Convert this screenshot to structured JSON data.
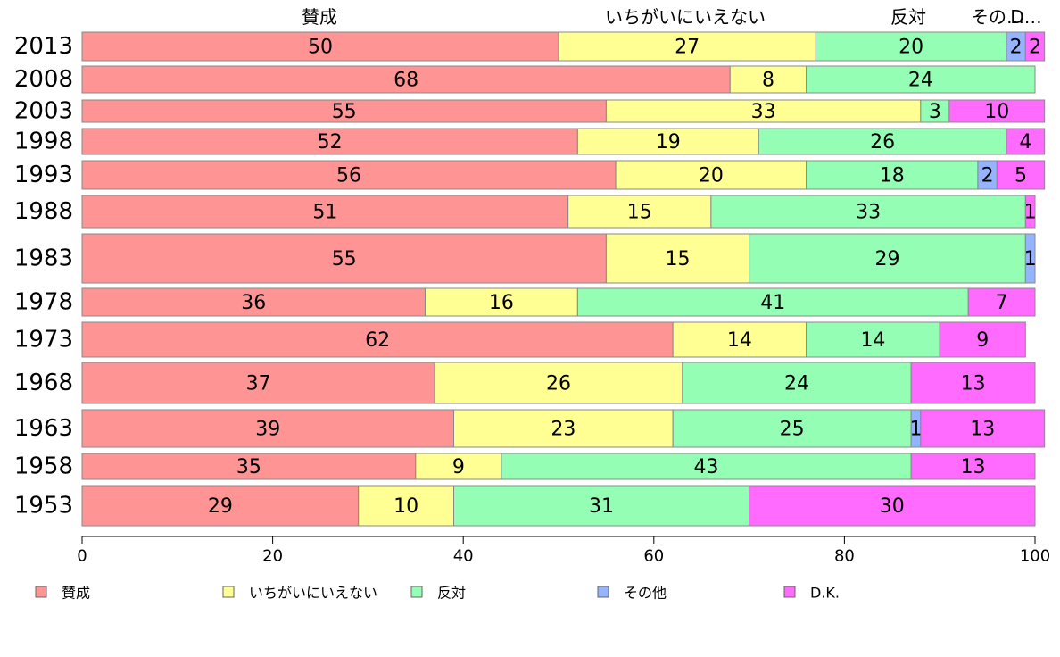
{
  "chart_data": {
    "type": "bar",
    "orientation": "horizontal",
    "stacked": true,
    "title": "",
    "xlabel": "",
    "ylabel": "",
    "xlim": [
      0,
      100
    ],
    "x_ticks": [
      "0",
      "20",
      "40",
      "60",
      "80",
      "100"
    ],
    "legend_position": "bottom",
    "grid": false,
    "categories": [
      "2013",
      "2008",
      "2003",
      "1998",
      "1993",
      "1988",
      "1983",
      "1978",
      "1973",
      "1968",
      "1963",
      "1958",
      "1953"
    ],
    "series": [
      {
        "name": "賛成",
        "color": "#ff9494",
        "values": [
          50,
          68,
          55,
          52,
          56,
          51,
          55,
          36,
          62,
          37,
          39,
          35,
          29
        ]
      },
      {
        "name": "いちがいにいえない",
        "color": "#ffff94",
        "values": [
          27,
          8,
          33,
          19,
          20,
          15,
          15,
          16,
          14,
          26,
          23,
          9,
          10
        ]
      },
      {
        "name": "反対",
        "color": "#94ffb4",
        "values": [
          20,
          24,
          3,
          26,
          18,
          33,
          29,
          41,
          14,
          24,
          25,
          43,
          31
        ]
      },
      {
        "name": "その他",
        "color": "#94b4ff",
        "values": [
          2,
          0,
          0,
          0,
          2,
          0,
          1,
          0,
          0,
          0,
          1,
          0,
          0
        ]
      },
      {
        "name": "D.K.",
        "color": "#ff6bff",
        "values": [
          2,
          0,
          10,
          4,
          5,
          1,
          0,
          7,
          9,
          13,
          13,
          13,
          30
        ]
      }
    ],
    "top_labels": [
      "賛成",
      "いちがいにいえない",
      "反対",
      "その…",
      "D…"
    ]
  }
}
